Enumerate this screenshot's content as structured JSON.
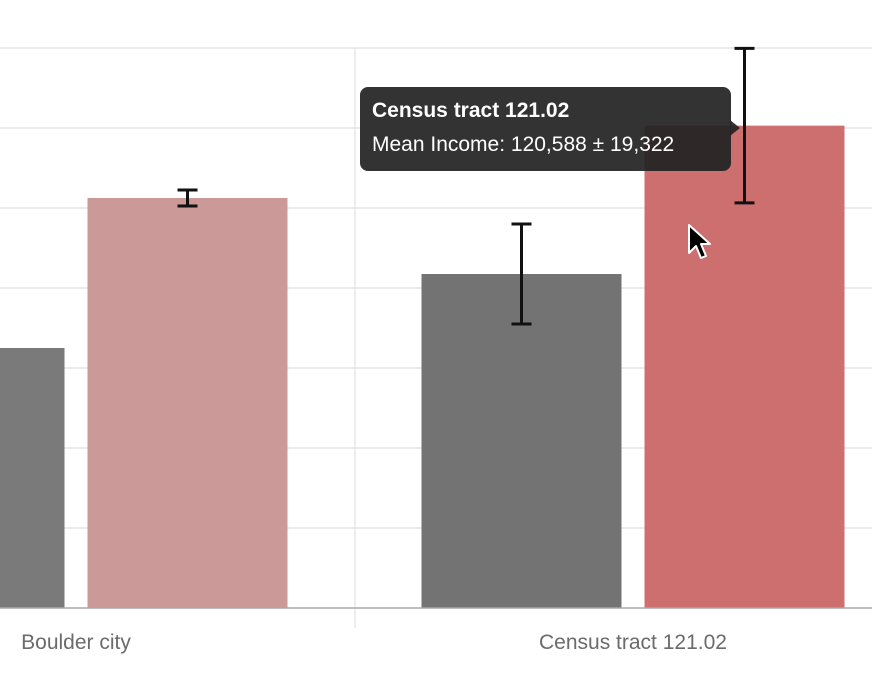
{
  "chart_data": {
    "type": "bar",
    "categories": [
      "Boulder city",
      "Census tract 121.02"
    ],
    "series": [
      {
        "values": [
          65000,
          83500
        ],
        "errors": [
          null,
          12500
        ],
        "colors": [
          "#7a7a7a",
          "#737373"
        ]
      },
      {
        "values": [
          102500,
          120588
        ],
        "errors": [
          2000,
          19322
        ],
        "colors": [
          "#cc9999",
          "#cd6f6f"
        ]
      }
    ],
    "ylim": [
      0,
      140000
    ],
    "grid": true,
    "title": "",
    "xlabel": "",
    "ylabel": ""
  },
  "tooltip": {
    "title": "Census tract 121.02",
    "line": "Mean Income: 120,588 ± 19,322"
  }
}
